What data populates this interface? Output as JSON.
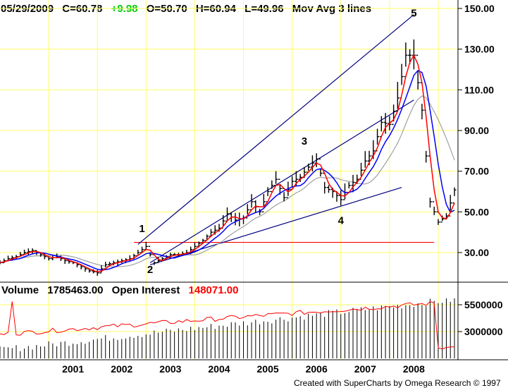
{
  "header": {
    "date": "05/29/2009",
    "close": "C=60.78",
    "change": "+9.98",
    "open": "O=50.70",
    "high": "H=60.94",
    "low": "L=49.96",
    "study": "Mov Avg 3 lines"
  },
  "volume_header": {
    "volume_label": "Volume",
    "volume_value": "1785463.00",
    "oi_label": "Open Interest",
    "oi_value": "148071.00"
  },
  "credit": "Created with SuperCharts by Omega Research © 1997",
  "colors": {
    "change": "#00cc00",
    "grid": "#ffff66",
    "trendline": "#000080",
    "ma_fast": "#ff0000",
    "ma_mid": "#0000ff",
    "ma_slow": "#a0a0a0",
    "support": "#ff0000",
    "open_interest": "#ff0000",
    "volume_bars": "#000000"
  },
  "chart_data": [
    {
      "type": "ohlc",
      "period": "monthly",
      "x_range": [
        "2000-01",
        "2009-05"
      ],
      "ylim": [
        22,
        155
      ],
      "y_ticks": [
        "30.00",
        "50.00",
        "70.00",
        "90.00",
        "110.00",
        "130.00",
        "150.00"
      ],
      "x_ticks": [
        "2001",
        "2002",
        "2003",
        "2004",
        "2005",
        "2006",
        "2007",
        "2008"
      ],
      "grid": true,
      "series_close": [
        {
          "date": "2000-01",
          "close": 25
        },
        {
          "date": "2000-03",
          "close": 27
        },
        {
          "date": "2000-05",
          "close": 28
        },
        {
          "date": "2000-07",
          "close": 30
        },
        {
          "date": "2000-09",
          "close": 31
        },
        {
          "date": "2000-11",
          "close": 29
        },
        {
          "date": "2001-01",
          "close": 27
        },
        {
          "date": "2001-03",
          "close": 28
        },
        {
          "date": "2001-05",
          "close": 26
        },
        {
          "date": "2001-07",
          "close": 25
        },
        {
          "date": "2001-09",
          "close": 23
        },
        {
          "date": "2001-11",
          "close": 21
        },
        {
          "date": "2002-01",
          "close": 20
        },
        {
          "date": "2002-03",
          "close": 24
        },
        {
          "date": "2002-05",
          "close": 25
        },
        {
          "date": "2002-07",
          "close": 26
        },
        {
          "date": "2002-09",
          "close": 27
        },
        {
          "date": "2002-11",
          "close": 30
        },
        {
          "date": "2003-01",
          "close": 33
        },
        {
          "date": "2003-03",
          "close": 25
        },
        {
          "date": "2003-05",
          "close": 27
        },
        {
          "date": "2003-07",
          "close": 29
        },
        {
          "date": "2003-09",
          "close": 29
        },
        {
          "date": "2003-11",
          "close": 30
        },
        {
          "date": "2004-01",
          "close": 33
        },
        {
          "date": "2004-03",
          "close": 36
        },
        {
          "date": "2004-05",
          "close": 40
        },
        {
          "date": "2004-07",
          "close": 42
        },
        {
          "date": "2004-09",
          "close": 49
        },
        {
          "date": "2004-11",
          "close": 46
        },
        {
          "date": "2005-01",
          "close": 47
        },
        {
          "date": "2005-03",
          "close": 55
        },
        {
          "date": "2005-05",
          "close": 50
        },
        {
          "date": "2005-07",
          "close": 60
        },
        {
          "date": "2005-09",
          "close": 66
        },
        {
          "date": "2005-11",
          "close": 57
        },
        {
          "date": "2006-01",
          "close": 65
        },
        {
          "date": "2006-03",
          "close": 67
        },
        {
          "date": "2006-05",
          "close": 72
        },
        {
          "date": "2006-07",
          "close": 76
        },
        {
          "date": "2006-09",
          "close": 62
        },
        {
          "date": "2006-11",
          "close": 60
        },
        {
          "date": "2007-01",
          "close": 56
        },
        {
          "date": "2007-03",
          "close": 63
        },
        {
          "date": "2007-05",
          "close": 66
        },
        {
          "date": "2007-07",
          "close": 75
        },
        {
          "date": "2007-09",
          "close": 80
        },
        {
          "date": "2007-11",
          "close": 94
        },
        {
          "date": "2008-01",
          "close": 93
        },
        {
          "date": "2008-03",
          "close": 106
        },
        {
          "date": "2008-05",
          "close": 127
        },
        {
          "date": "2008-07",
          "close": 127
        },
        {
          "date": "2008-09",
          "close": 100
        },
        {
          "date": "2008-11",
          "close": 55
        },
        {
          "date": "2009-01",
          "close": 45
        },
        {
          "date": "2009-03",
          "close": 48
        },
        {
          "date": "2009-05",
          "close": 60.78
        }
      ],
      "waves": [
        {
          "label": "1",
          "date": "2002-12"
        },
        {
          "label": "2",
          "date": "2003-02"
        },
        {
          "label": "3",
          "date": "2006-04"
        },
        {
          "label": "4",
          "date": "2007-01"
        },
        {
          "label": "5",
          "date": "2008-07"
        }
      ]
    },
    {
      "type": "bar",
      "name": "Volume",
      "y_ticks": [
        "3000000",
        "5500000"
      ],
      "open_interest_trend": "rising from 2001 to 2008, sharp drop in early 2009"
    }
  ]
}
